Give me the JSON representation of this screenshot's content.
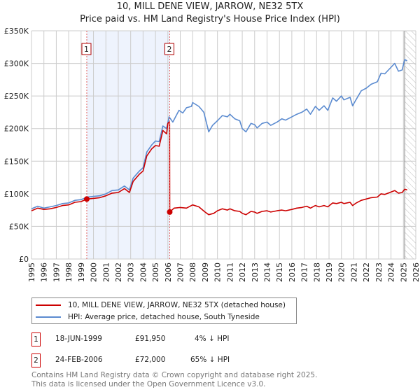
{
  "chart_data": {
    "type": "line",
    "title": "10, MILL DENE VIEW, JARROW, NE32 5TX",
    "subtitle": "Price paid vs. HM Land Registry's House Price Index (HPI)",
    "xlim": [
      1995,
      2026
    ],
    "ylim": [
      0,
      350000
    ],
    "grid": true,
    "x_ticks": [
      "1995",
      "1996",
      "1997",
      "1998",
      "1999",
      "2000",
      "2001",
      "2002",
      "2003",
      "2004",
      "2005",
      "2006",
      "2007",
      "2008",
      "2009",
      "2010",
      "2011",
      "2012",
      "2013",
      "2014",
      "2015",
      "2016",
      "2017",
      "2018",
      "2019",
      "2020",
      "2021",
      "2022",
      "2023",
      "2024",
      "2025",
      "2026"
    ],
    "y_ticks": [
      {
        "v": 0,
        "label": "£0"
      },
      {
        "v": 50000,
        "label": "£50K"
      },
      {
        "v": 100000,
        "label": "£100K"
      },
      {
        "v": 150000,
        "label": "£150K"
      },
      {
        "v": 200000,
        "label": "£200K"
      },
      {
        "v": 250000,
        "label": "£250K"
      },
      {
        "v": 300000,
        "label": "£300K"
      },
      {
        "v": 350000,
        "label": "£350K"
      }
    ],
    "shaded_range": [
      1999.46,
      2006.15
    ],
    "forecast_hatch_from": 2025.1,
    "series": [
      {
        "name": "10, MILL DENE VIEW, JARROW, NE32 5TX (detached house)",
        "color": "#cc0000",
        "x": [
          1995,
          1995.5,
          1996,
          1996.5,
          1997,
          1997.5,
          1998,
          1998.5,
          1999,
          1999.46,
          2000,
          2000.5,
          2001,
          2001.5,
          2002,
          2002.5,
          2002.9,
          2003.2,
          2003.7,
          2004,
          2004.3,
          2004.7,
          2005,
          2005.3,
          2005.6,
          2005.9,
          2006.0,
          2006.1,
          2006.14,
          2006.15,
          2006.5,
          2007,
          2007.5,
          2008,
          2008.5,
          2009,
          2009.3,
          2009.7,
          2010,
          2010.4,
          2010.8,
          2011,
          2011.4,
          2011.8,
          2012,
          2012.3,
          2012.7,
          2013,
          2013.2,
          2013.6,
          2014,
          2014.3,
          2014.8,
          2015.2,
          2015.5,
          2016,
          2016.4,
          2016.8,
          2017.2,
          2017.5,
          2017.9,
          2018.2,
          2018.6,
          2018.9,
          2019.3,
          2019.6,
          2020,
          2020.2,
          2020.7,
          2020.9,
          2021.2,
          2021.6,
          2022,
          2022.4,
          2022.9,
          2023.2,
          2023.5,
          2023.9,
          2024.3,
          2024.6,
          2024.9,
          2025.1,
          2025.3
        ],
        "y": [
          74000,
          78000,
          76000,
          77000,
          79000,
          82000,
          83000,
          87000,
          88000,
          91950,
          93000,
          94000,
          97000,
          101000,
          102000,
          108000,
          102000,
          119000,
          130000,
          135000,
          158000,
          169000,
          174000,
          173000,
          197000,
          192000,
          208000,
          210000,
          208000,
          72000,
          78000,
          79000,
          78000,
          83000,
          80000,
          72000,
          68000,
          70000,
          74000,
          77000,
          75000,
          77000,
          74000,
          73000,
          70000,
          68000,
          73000,
          72000,
          70000,
          73000,
          74000,
          72000,
          74000,
          75000,
          74000,
          76000,
          78000,
          79000,
          81000,
          78000,
          82000,
          80000,
          82000,
          80000,
          86000,
          85000,
          87000,
          85000,
          87000,
          82000,
          86000,
          90000,
          92000,
          94000,
          95000,
          100000,
          99000,
          102000,
          105000,
          101000,
          102000,
          107000,
          106000
        ]
      },
      {
        "name": "HPI: Average price, detached house, South Tyneside",
        "color": "#5b8bd0",
        "x": [
          1995,
          1995.5,
          1996,
          1996.5,
          1997,
          1997.5,
          1998,
          1998.5,
          1999,
          1999.5,
          2000,
          2000.5,
          2001,
          2001.5,
          2002,
          2002.5,
          2002.9,
          2003.2,
          2003.7,
          2004,
          2004.3,
          2004.7,
          2005,
          2005.3,
          2005.6,
          2005.9,
          2006.1,
          2006.4,
          2006.9,
          2007.2,
          2007.5,
          2007.9,
          2008.0,
          2008.5,
          2008.9,
          2009.3,
          2009.6,
          2010,
          2010.4,
          2010.8,
          2011,
          2011.4,
          2011.8,
          2012,
          2012.3,
          2012.7,
          2013,
          2013.2,
          2013.6,
          2014,
          2014.3,
          2014.8,
          2015.2,
          2015.5,
          2016,
          2016.4,
          2016.8,
          2017.2,
          2017.5,
          2017.9,
          2018.2,
          2018.6,
          2018.9,
          2019.3,
          2019.6,
          2020,
          2020.2,
          2020.7,
          2020.9,
          2021.2,
          2021.6,
          2022,
          2022.4,
          2022.9,
          2023.2,
          2023.5,
          2023.9,
          2024.3,
          2024.6,
          2024.9,
          2025.1,
          2025.3
        ],
        "y": [
          77000,
          81000,
          78000,
          80000,
          82000,
          85000,
          86000,
          90000,
          91000,
          95000,
          96000,
          97000,
          100000,
          105000,
          106000,
          112000,
          106000,
          124000,
          135000,
          140000,
          164000,
          175000,
          181000,
          180000,
          204000,
          200000,
          218000,
          210000,
          228000,
          224000,
          232000,
          234000,
          240000,
          234000,
          225000,
          195000,
          205000,
          212000,
          220000,
          218000,
          222000,
          215000,
          212000,
          200000,
          195000,
          208000,
          206000,
          201000,
          208000,
          210000,
          205000,
          210000,
          215000,
          213000,
          218000,
          222000,
          225000,
          230000,
          222000,
          234000,
          228000,
          235000,
          228000,
          247000,
          242000,
          250000,
          244000,
          248000,
          235000,
          245000,
          258000,
          262000,
          268000,
          272000,
          285000,
          284000,
          292000,
          300000,
          288000,
          290000,
          306000,
          304000
        ]
      }
    ],
    "sales": [
      {
        "id": "1",
        "x": 1999.46,
        "y": 91950
      },
      {
        "id": "2",
        "x": 2006.15,
        "y": 72000
      }
    ]
  },
  "legend": {
    "property": "10, MILL DENE VIEW, JARROW, NE32 5TX (detached house)",
    "hpi": "HPI: Average price, detached house, South Tyneside"
  },
  "transactions": [
    {
      "id": "1",
      "date": "18-JUN-1999",
      "price": "£91,950",
      "hpi": "4% ↓ HPI"
    },
    {
      "id": "2",
      "date": "24-FEB-2006",
      "price": "£72,000",
      "hpi": "65% ↓ HPI"
    }
  ],
  "footer": {
    "line1": "Contains HM Land Registry data © Crown copyright and database right 2025.",
    "line2": "This data is licensed under the Open Government Licence v3.0."
  }
}
